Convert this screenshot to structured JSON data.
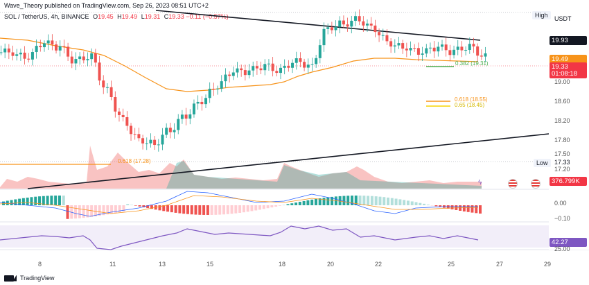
{
  "header": {
    "publish_line": "Wave_Theory published on TradingView.com, Sep 26, 2023 08:51 UTC+2",
    "symbol": "SOL / TetherUS, 4h, BINANCE",
    "o_label": "O",
    "o_value": "19.45",
    "h_label": "H",
    "h_value": "19.49",
    "l_label": "L",
    "l_value": "19.31",
    "c_label": "C",
    "c_value": "19.33",
    "change": "−0.11 (−0.57%)"
  },
  "price_axis": {
    "currency": "USDT",
    "high_tag": "High",
    "low_tag": "Low",
    "low_value": "17.33",
    "ticks": [
      "19.00",
      "18.60",
      "18.20",
      "17.80",
      "17.50",
      "17.20"
    ],
    "badge_high": "19.93",
    "badge_ema": "19.49",
    "badge_price": "19.33",
    "badge_countdown": "01:08:18",
    "badge_volume": "376.799K",
    "macd_ticks": [
      "0.00",
      "−0.10"
    ],
    "rsi_value": "42.27",
    "rsi_tick": "25.00"
  },
  "fib_labels": {
    "fib_0618_low": "0.618 (17.28)",
    "fib_0382": "0.382 (19.31)",
    "fib_0618_mid": "0.618 (18.55)",
    "fib_065_mid": "0.65 (18.45)"
  },
  "x_axis": [
    "8",
    "11",
    "13",
    "15",
    "18",
    "20",
    "22",
    "25",
    "27",
    "29"
  ],
  "footer": {
    "brand": "TradingView"
  },
  "colors": {
    "up": "#26a69a",
    "down": "#ef5350",
    "ema": "#f7931a",
    "trendline": "#131722",
    "fib_orange": "#f7931a",
    "fib_yellow": "#f5d300",
    "fib_green": "#4caf50",
    "rsi": "#7e57c2",
    "badge_red": "#f23645"
  },
  "chart_data": {
    "type": "candlestick",
    "symbol": "SOL/USDT",
    "interval": "4h",
    "price_range": [
      17.1,
      20.2
    ],
    "candles_close_approx": [
      19.4,
      19.3,
      19.6,
      19.5,
      19.2,
      19.3,
      18.6,
      18.0,
      17.6,
      17.5,
      17.8,
      18.1,
      18.4,
      18.7,
      19.0,
      19.0,
      19.1,
      19.0,
      19.2,
      19.1,
      19.9,
      20.0,
      20.1,
      19.9,
      19.6,
      19.5,
      19.4,
      19.5,
      19.4,
      19.5,
      19.3
    ],
    "ema": [
      19.7,
      19.6,
      19.5,
      19.3,
      19.0,
      18.8,
      18.9,
      19.0,
      19.1,
      19.4,
      19.45,
      19.45,
      19.49
    ],
    "fib_levels": [
      {
        "label": "0.618",
        "value": 17.28
      },
      {
        "label": "0.382",
        "value": 19.31
      },
      {
        "label": "0.618",
        "value": 18.55
      },
      {
        "label": "0.65",
        "value": 18.45
      }
    ],
    "rsi_last": 42.27,
    "volume_last": "376.799K"
  }
}
